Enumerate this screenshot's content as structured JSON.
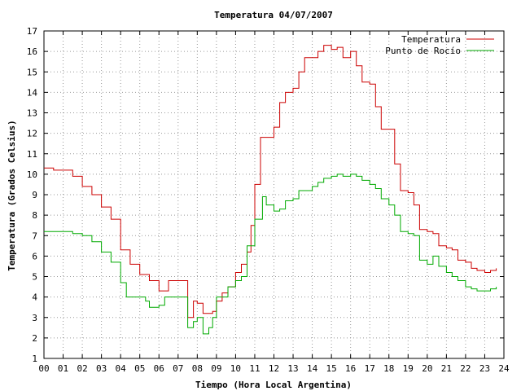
{
  "chart_data": {
    "type": "line",
    "title": "Temperatura 04/07/2007",
    "xlabel": "Tiempo (Hora Local Argentina)",
    "ylabel": "Temperatura (Grados Celsius)",
    "xlim": [
      0,
      24
    ],
    "ylim": [
      1,
      17
    ],
    "x_ticks": [
      "00",
      "01",
      "02",
      "03",
      "04",
      "05",
      "06",
      "07",
      "08",
      "09",
      "10",
      "11",
      "12",
      "13",
      "14",
      "15",
      "16",
      "17",
      "18",
      "19",
      "20",
      "21",
      "22",
      "23",
      "24"
    ],
    "y_ticks": [
      "1",
      "2",
      "3",
      "4",
      "5",
      "6",
      "7",
      "8",
      "9",
      "10",
      "11",
      "12",
      "13",
      "14",
      "15",
      "16",
      "17"
    ],
    "grid": true,
    "legend_position": "top-right",
    "series": [
      {
        "name": "Temperatura",
        "color": "#cc0000",
        "x": [
          0,
          0.3,
          0.5,
          1,
          1.5,
          2,
          2.5,
          3,
          3.5,
          4,
          4.5,
          5,
          5.5,
          6,
          6.5,
          7,
          7.3,
          7.5,
          7.8,
          8,
          8.3,
          8.5,
          8.8,
          9,
          9.3,
          9.6,
          10,
          10.3,
          10.6,
          10.8,
          11,
          11.3,
          11.6,
          12,
          12.3,
          12.6,
          13,
          13.3,
          13.6,
          14,
          14.3,
          14.6,
          15,
          15.3,
          15.6,
          16,
          16.3,
          16.6,
          17,
          17.3,
          17.6,
          18,
          18.3,
          18.6,
          19,
          19.3,
          19.6,
          20,
          20.3,
          20.6,
          21,
          21.3,
          21.6,
          22,
          22.3,
          22.6,
          23,
          23.3,
          23.6
        ],
        "values": [
          10.3,
          10.3,
          10.2,
          10.2,
          9.9,
          9.4,
          9.0,
          8.4,
          7.8,
          6.3,
          5.6,
          5.1,
          4.8,
          4.3,
          4.8,
          4.8,
          4.8,
          3.0,
          3.8,
          3.7,
          3.2,
          3.2,
          3.3,
          3.8,
          4.2,
          4.5,
          5.2,
          5.6,
          6.2,
          7.5,
          9.5,
          11.8,
          11.8,
          12.3,
          13.5,
          14.0,
          14.2,
          15.0,
          15.7,
          15.7,
          16.0,
          16.3,
          16.1,
          16.2,
          15.7,
          16.0,
          15.3,
          14.5,
          14.4,
          13.3,
          12.2,
          12.2,
          10.5,
          9.2,
          9.1,
          8.5,
          7.3,
          7.2,
          7.1,
          6.5,
          6.4,
          6.3,
          5.8,
          5.7,
          5.4,
          5.3,
          5.2,
          5.3,
          5.4
        ]
      },
      {
        "name": "Punto de Rocío",
        "color": "#00aa00",
        "x": [
          0,
          0.3,
          0.6,
          1,
          1.5,
          2,
          2.5,
          3,
          3.5,
          4,
          4.3,
          4.5,
          5,
          5.3,
          5.5,
          6,
          6.3,
          6.6,
          7,
          7.3,
          7.5,
          7.8,
          8,
          8.3,
          8.6,
          8.8,
          9,
          9.3,
          9.6,
          10,
          10.3,
          10.6,
          11,
          11.2,
          11.4,
          11.6,
          12,
          12.3,
          12.6,
          13,
          13.3,
          13.6,
          14,
          14.3,
          14.6,
          15,
          15.3,
          15.6,
          16,
          16.3,
          16.6,
          17,
          17.3,
          17.6,
          18,
          18.3,
          18.6,
          19,
          19.3,
          19.6,
          20,
          20.3,
          20.6,
          21,
          21.3,
          21.6,
          22,
          22.3,
          22.6,
          23,
          23.3,
          23.6
        ],
        "values": [
          7.2,
          7.2,
          7.2,
          7.2,
          7.1,
          7.0,
          6.7,
          6.2,
          5.7,
          4.7,
          4.0,
          4.0,
          4.0,
          3.8,
          3.5,
          3.6,
          4.0,
          4.0,
          4.0,
          4.0,
          2.5,
          2.8,
          3.0,
          2.2,
          2.5,
          3.0,
          4.0,
          4.0,
          4.5,
          4.8,
          5.0,
          6.5,
          7.8,
          7.8,
          8.9,
          8.5,
          8.2,
          8.3,
          8.7,
          8.8,
          9.2,
          9.2,
          9.4,
          9.6,
          9.8,
          9.9,
          10.0,
          9.9,
          10.0,
          9.9,
          9.7,
          9.5,
          9.3,
          8.8,
          8.5,
          8.0,
          7.2,
          7.1,
          7.0,
          5.8,
          5.6,
          6.0,
          5.5,
          5.2,
          5.0,
          4.8,
          4.5,
          4.4,
          4.3,
          4.3,
          4.4,
          4.5
        ]
      }
    ]
  }
}
